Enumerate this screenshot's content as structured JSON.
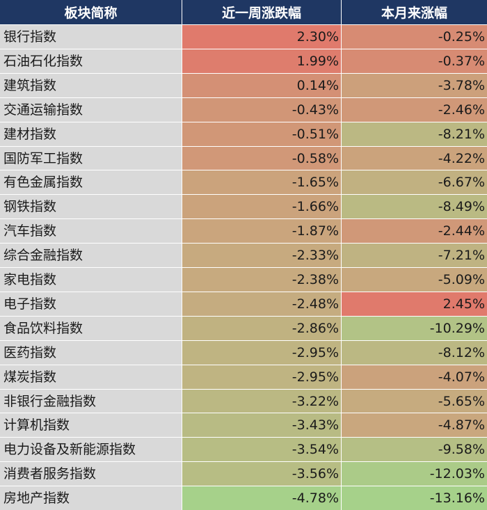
{
  "chart_data": {
    "type": "table",
    "columns": [
      "板块简称",
      "近一周涨跌幅",
      "本月来涨幅"
    ],
    "rows": [
      {
        "name": "银行指数",
        "week": "2.30%",
        "month": "-0.25%"
      },
      {
        "name": "石油石化指数",
        "week": "1.99%",
        "month": "-0.37%"
      },
      {
        "name": "建筑指数",
        "week": "0.14%",
        "month": "-3.78%"
      },
      {
        "name": "交通运输指数",
        "week": "-0.43%",
        "month": "-2.46%"
      },
      {
        "name": "建材指数",
        "week": "-0.51%",
        "month": "-8.21%"
      },
      {
        "name": "国防军工指数",
        "week": "-0.58%",
        "month": "-4.22%"
      },
      {
        "name": "有色金属指数",
        "week": "-1.65%",
        "month": "-6.67%"
      },
      {
        "name": "钢铁指数",
        "week": "-1.66%",
        "month": "-8.49%"
      },
      {
        "name": "汽车指数",
        "week": "-1.87%",
        "month": "-2.44%"
      },
      {
        "name": "综合金融指数",
        "week": "-2.33%",
        "month": "-7.21%"
      },
      {
        "name": "家电指数",
        "week": "-2.38%",
        "month": "-5.09%"
      },
      {
        "name": "电子指数",
        "week": "-2.48%",
        "month": "2.45%"
      },
      {
        "name": "食品饮料指数",
        "week": "-2.86%",
        "month": "-10.29%"
      },
      {
        "name": "医药指数",
        "week": "-2.95%",
        "month": "-8.12%"
      },
      {
        "name": "煤炭指数",
        "week": "-2.95%",
        "month": "-4.07%"
      },
      {
        "name": "非银行金融指数",
        "week": "-3.22%",
        "month": "-5.65%"
      },
      {
        "name": "计算机指数",
        "week": "-3.43%",
        "month": "-4.87%"
      },
      {
        "name": "电力设备及新能源指数",
        "week": "-3.54%",
        "month": "-9.58%"
      },
      {
        "name": "消费者服务指数",
        "week": "-3.56%",
        "month": "-12.03%"
      },
      {
        "name": "房地产指数",
        "week": "-4.78%",
        "month": "-13.16%"
      }
    ],
    "color_scale": {
      "high": "#e07a6c",
      "mid": "#c7aa7f",
      "low": "#a6d18a"
    }
  }
}
